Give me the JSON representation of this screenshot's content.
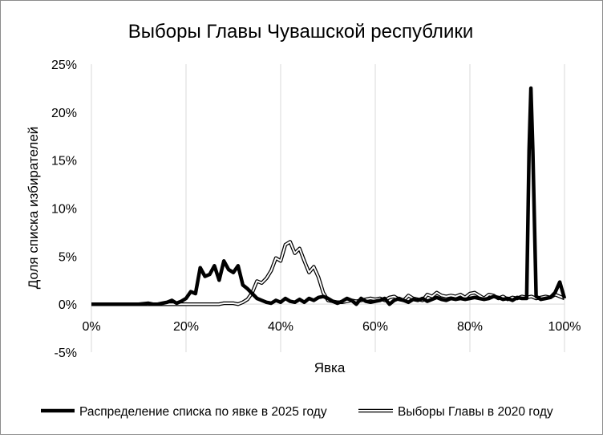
{
  "chart_data": {
    "type": "line",
    "title": "Выборы Главы Чувашской республики",
    "xlabel": "Явка",
    "ylabel": "Доля списка избирателей",
    "x_ticks": [
      "0%",
      "20%",
      "40%",
      "60%",
      "80%",
      "100%"
    ],
    "y_ticks": [
      "-5%",
      "0%",
      "5%",
      "10%",
      "15%",
      "20%",
      "25%"
    ],
    "xlim": [
      0,
      100
    ],
    "ylim": [
      -5,
      25
    ],
    "grid": "vertical",
    "legend_position": "bottom",
    "series": [
      {
        "name": "Распределение списка по явке в 2025 году",
        "style": "thick-black",
        "color": "#000000",
        "points": [
          [
            0,
            0
          ],
          [
            5,
            0
          ],
          [
            10,
            0
          ],
          [
            12,
            0.1
          ],
          [
            13,
            0
          ],
          [
            14,
            0
          ],
          [
            15,
            0.1
          ],
          [
            16,
            0.2
          ],
          [
            17,
            0.4
          ],
          [
            18,
            0.1
          ],
          [
            19,
            0.3
          ],
          [
            20,
            0.6
          ],
          [
            21,
            1.3
          ],
          [
            22,
            1.1
          ],
          [
            23,
            3.8
          ],
          [
            24,
            2.9
          ],
          [
            25,
            3.1
          ],
          [
            26,
            4.0
          ],
          [
            27,
            2.5
          ],
          [
            28,
            4.5
          ],
          [
            29,
            3.6
          ],
          [
            30,
            3.3
          ],
          [
            31,
            4.0
          ],
          [
            32,
            2.0
          ],
          [
            33,
            1.6
          ],
          [
            34,
            1.1
          ],
          [
            35,
            0.6
          ],
          [
            36,
            0.4
          ],
          [
            37,
            0.2
          ],
          [
            38,
            0.1
          ],
          [
            39,
            0.4
          ],
          [
            40,
            0.2
          ],
          [
            41,
            0.6
          ],
          [
            42,
            0.3
          ],
          [
            43,
            0.2
          ],
          [
            44,
            0.5
          ],
          [
            45,
            0.2
          ],
          [
            46,
            0.6
          ],
          [
            47,
            0.4
          ],
          [
            48,
            0.7
          ],
          [
            49,
            0.8
          ],
          [
            50,
            0.6
          ],
          [
            51,
            0.3
          ],
          [
            52,
            0.1
          ],
          [
            53,
            0.3
          ],
          [
            54,
            0.6
          ],
          [
            55,
            0.4
          ],
          [
            56,
            0.0
          ],
          [
            57,
            0.6
          ],
          [
            58,
            0.3
          ],
          [
            59,
            0.2
          ],
          [
            60,
            0.3
          ],
          [
            61,
            0.4
          ],
          [
            62,
            0.6
          ],
          [
            63,
            0.0
          ],
          [
            64,
            0.4
          ],
          [
            65,
            0.6
          ],
          [
            66,
            0.4
          ],
          [
            67,
            0.2
          ],
          [
            68,
            0.5
          ],
          [
            69,
            0.4
          ],
          [
            70,
            0.6
          ],
          [
            71,
            0.3
          ],
          [
            72,
            0.5
          ],
          [
            73,
            0.7
          ],
          [
            74,
            0.5
          ],
          [
            75,
            0.4
          ],
          [
            76,
            0.6
          ],
          [
            77,
            0.5
          ],
          [
            78,
            0.6
          ],
          [
            79,
            0.5
          ],
          [
            80,
            0.6
          ],
          [
            81,
            0.7
          ],
          [
            82,
            0.6
          ],
          [
            83,
            0.5
          ],
          [
            84,
            0.6
          ],
          [
            85,
            0.8
          ],
          [
            86,
            0.7
          ],
          [
            87,
            0.5
          ],
          [
            88,
            0.6
          ],
          [
            89,
            0.4
          ],
          [
            90,
            0.7
          ],
          [
            91,
            0.6
          ],
          [
            92,
            0.6
          ],
          [
            92.5,
            16.0
          ],
          [
            92.9,
            22.5
          ],
          [
            93.3,
            16.0
          ],
          [
            94,
            0.8
          ],
          [
            95,
            0.5
          ],
          [
            96,
            0.6
          ],
          [
            97,
            0.7
          ],
          [
            98,
            1.2
          ],
          [
            99,
            2.3
          ],
          [
            100,
            0.6
          ]
        ]
      },
      {
        "name": "Выборы Главы в 2020 году",
        "style": "double-line",
        "color": "#000000",
        "points": [
          [
            0,
            0
          ],
          [
            10,
            0
          ],
          [
            20,
            0
          ],
          [
            25,
            0
          ],
          [
            27,
            0
          ],
          [
            28,
            0.1
          ],
          [
            29,
            0.1
          ],
          [
            30,
            0.1
          ],
          [
            31,
            0
          ],
          [
            32,
            0.2
          ],
          [
            33,
            0.5
          ],
          [
            34,
            1.2
          ],
          [
            35,
            2.4
          ],
          [
            36,
            2.2
          ],
          [
            37,
            2.7
          ],
          [
            38,
            3.5
          ],
          [
            39,
            4.8
          ],
          [
            40,
            4.5
          ],
          [
            41,
            6.2
          ],
          [
            42,
            6.5
          ],
          [
            43,
            5.3
          ],
          [
            44,
            5.8
          ],
          [
            45,
            4.5
          ],
          [
            46,
            3.3
          ],
          [
            47,
            3.9
          ],
          [
            48,
            2.8
          ],
          [
            49,
            1.2
          ],
          [
            50,
            0.4
          ],
          [
            51,
            0.3
          ],
          [
            52,
            0.2
          ],
          [
            53,
            0.2
          ],
          [
            54,
            0.3
          ],
          [
            55,
            0.4
          ],
          [
            56,
            0.3
          ],
          [
            57,
            0.4
          ],
          [
            58,
            0.5
          ],
          [
            59,
            0.6
          ],
          [
            60,
            0.5
          ],
          [
            61,
            0.6
          ],
          [
            62,
            0.4
          ],
          [
            63,
            0.7
          ],
          [
            64,
            0.8
          ],
          [
            65,
            0.5
          ],
          [
            66,
            0.4
          ],
          [
            67,
            0.9
          ],
          [
            68,
            0.6
          ],
          [
            69,
            0.5
          ],
          [
            70,
            0.4
          ],
          [
            71,
            1.0
          ],
          [
            72,
            0.8
          ],
          [
            73,
            1.2
          ],
          [
            74,
            0.9
          ],
          [
            75,
            0.8
          ],
          [
            76,
            0.9
          ],
          [
            77,
            0.8
          ],
          [
            78,
            1.0
          ],
          [
            79,
            0.7
          ],
          [
            80,
            1.1
          ],
          [
            81,
            1.2
          ],
          [
            82,
            0.9
          ],
          [
            83,
            0.6
          ],
          [
            84,
            1.0
          ],
          [
            85,
            0.9
          ],
          [
            86,
            0.6
          ],
          [
            87,
            0.8
          ],
          [
            88,
            0.5
          ],
          [
            89,
            0.7
          ],
          [
            90,
            0.6
          ],
          [
            91,
            0.8
          ],
          [
            92,
            0.7
          ],
          [
            93,
            0.8
          ],
          [
            94,
            0.6
          ],
          [
            95,
            0.7
          ],
          [
            96,
            0.8
          ],
          [
            97,
            0.7
          ],
          [
            98,
            1.0
          ],
          [
            99,
            0.8
          ],
          [
            100,
            0.6
          ]
        ]
      }
    ]
  }
}
